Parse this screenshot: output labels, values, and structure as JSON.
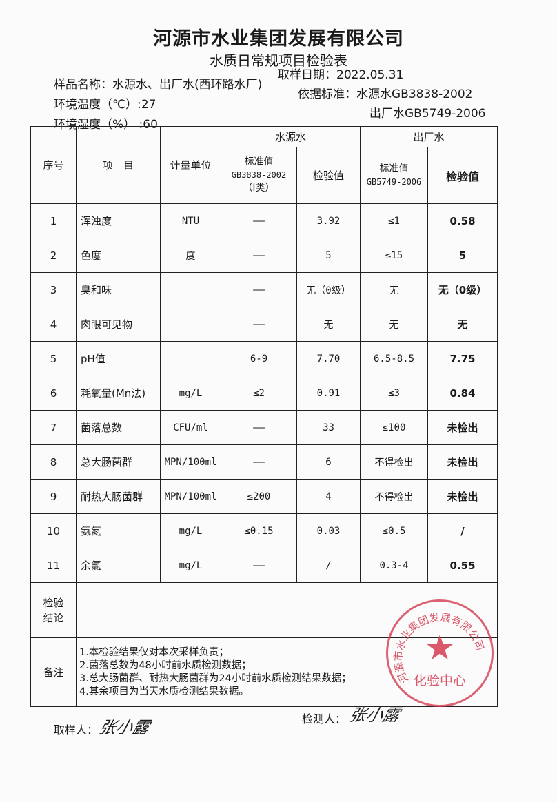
{
  "header": {
    "company": "河源市水业集团发展有限公司",
    "title": "水质日常规项目检验表",
    "sample_name": "样品名称：水源水、出厂水(西环路水厂)",
    "sample_date": "取样日期：2022.05.31",
    "temperature": "环境温度（℃）:27",
    "humidity": "环境湿度（%） :60",
    "standard_1": "依据标准：水源水GB3838-2002",
    "standard_2": "出厂水GB5749-2006"
  },
  "table": {
    "col_no": "序号",
    "col_item": "项　目",
    "col_unit": "计量单位",
    "group_source": "水源水",
    "group_output": "出厂水",
    "source_std": "标准值",
    "source_std_code": "GB3838-2002",
    "source_std_class": "（Ⅰ类）",
    "source_val": "检验值",
    "output_std": "标准值",
    "output_std_code": "GB5749-2006",
    "output_val": "检验值",
    "rows": [
      {
        "no": "1",
        "item": "浑浊度",
        "unit": "NTU",
        "src_std": "——",
        "src_val": "3.92",
        "out_std": "≤1",
        "out_val": "0.58"
      },
      {
        "no": "2",
        "item": "色度",
        "unit": "度",
        "src_std": "——",
        "src_val": "5",
        "out_std": "≤15",
        "out_val": "5"
      },
      {
        "no": "3",
        "item": "臭和味",
        "unit": "",
        "src_std": "——",
        "src_val": "无（0级）",
        "out_std": "无",
        "out_val": "无（0级）"
      },
      {
        "no": "4",
        "item": "肉眼可见物",
        "unit": "",
        "src_std": "——",
        "src_val": "无",
        "out_std": "无",
        "out_val": "无"
      },
      {
        "no": "5",
        "item": "pH值",
        "unit": "",
        "src_std": "6-9",
        "src_val": "7.70",
        "out_std": "6.5-8.5",
        "out_val": "7.75"
      },
      {
        "no": "6",
        "item": "耗氧量(Mn法)",
        "unit": "mg/L",
        "src_std": "≤2",
        "src_val": "0.91",
        "out_std": "≤3",
        "out_val": "0.84"
      },
      {
        "no": "7",
        "item": "菌落总数",
        "unit": "CFU/ml",
        "src_std": "——",
        "src_val": "33",
        "out_std": "≤100",
        "out_val": "未检出"
      },
      {
        "no": "8",
        "item": "总大肠菌群",
        "unit": "MPN/100ml",
        "src_std": "——",
        "src_val": "6",
        "out_std": "不得检出",
        "out_val": "未检出"
      },
      {
        "no": "9",
        "item": "耐热大肠菌群",
        "unit": "MPN/100ml",
        "src_std": "≤200",
        "src_val": "4",
        "out_std": "不得检出",
        "out_val": "未检出"
      },
      {
        "no": "10",
        "item": "氨氮",
        "unit": "mg/L",
        "src_std": "≤0.15",
        "src_val": "0.03",
        "out_std": "≤0.5",
        "out_val": "/"
      },
      {
        "no": "11",
        "item": "余氯",
        "unit": "mg/L",
        "src_std": "——",
        "src_val": "/",
        "out_std": "0.3-4",
        "out_val": "0.55"
      }
    ],
    "conclusion_label": "检验\n结论",
    "conclusion_value": "",
    "notes_label": "备注",
    "notes": [
      "1.本检验结果仅对本次采样负责；",
      "2.菌落总数为48小时前水质检测数据；",
      "3.总大肠菌群、耐热大肠菌群为24小时前水质检测结果数据；",
      "4.其余项目为当天水质检测结果数据。"
    ]
  },
  "footer": {
    "sampler_label": "取样人：",
    "sampler_signature": "张小露",
    "tester_label": "检测人：",
    "tester_signature": "张小露"
  },
  "stamp": {
    "ring_text": "河源市水业集团发展有限公司",
    "center_text": "化验中心",
    "color": "#d23c50"
  }
}
